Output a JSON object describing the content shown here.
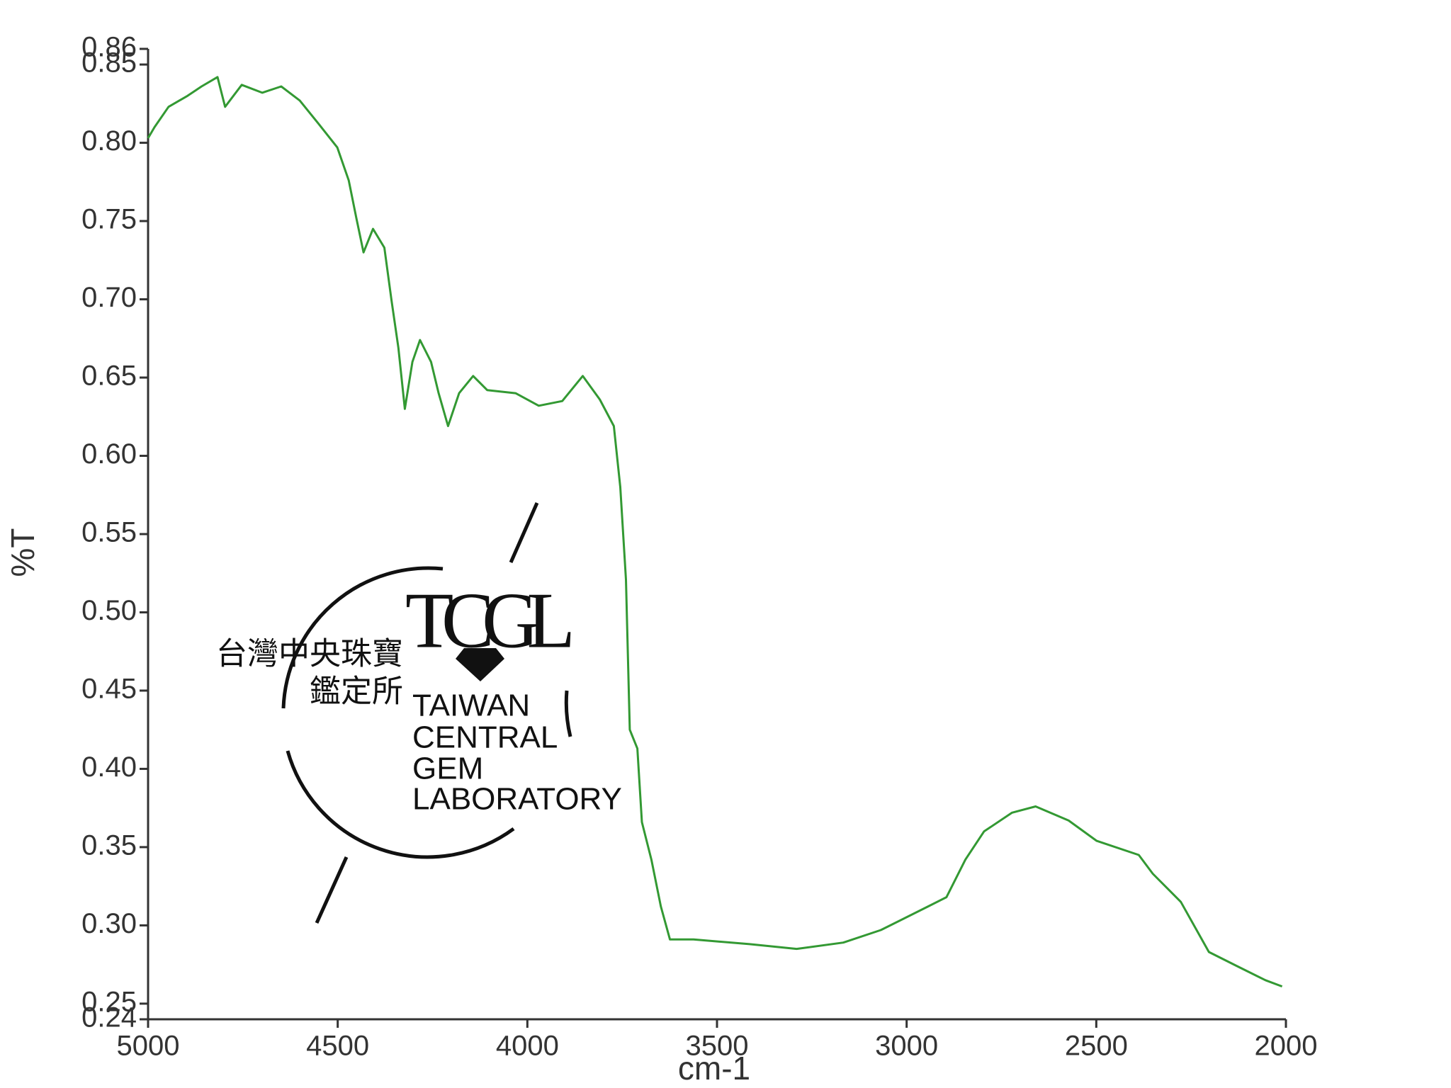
{
  "chart_data": {
    "type": "line",
    "x_label": "cm-1",
    "y_label": "%T",
    "x": [
      5000,
      4983,
      4946,
      4896,
      4859,
      4817,
      4797,
      4753,
      4699,
      4649,
      4600,
      4550,
      4501,
      4471,
      4451,
      4432,
      4407,
      4377,
      4358,
      4340,
      4323,
      4303,
      4283,
      4254,
      4234,
      4209,
      4180,
      4143,
      4106,
      4031,
      3970,
      3908,
      3854,
      3809,
      3772,
      3755,
      3740,
      3730,
      3710,
      3698,
      3673,
      3648,
      3624,
      3562,
      3414,
      3290,
      3167,
      3068,
      2944,
      2895,
      2845,
      2796,
      2722,
      2660,
      2573,
      2499,
      2388,
      2351,
      2277,
      2203,
      2129,
      2054,
      2010
    ],
    "series": [
      {
        "color": "#339933",
        "values": [
          0.803,
          0.81,
          0.823,
          0.83,
          0.836,
          0.842,
          0.823,
          0.837,
          0.832,
          0.836,
          0.827,
          0.812,
          0.797,
          0.776,
          0.752,
          0.73,
          0.745,
          0.733,
          0.699,
          0.669,
          0.63,
          0.66,
          0.674,
          0.66,
          0.64,
          0.619,
          0.64,
          0.651,
          0.642,
          0.64,
          0.632,
          0.635,
          0.651,
          0.636,
          0.619,
          0.58,
          0.521,
          0.425,
          0.413,
          0.366,
          0.342,
          0.312,
          0.291,
          0.291,
          0.288,
          0.285,
          0.289,
          0.297,
          0.312,
          0.318,
          0.342,
          0.36,
          0.372,
          0.376,
          0.367,
          0.354,
          0.345,
          0.333,
          0.315,
          0.283,
          0.274,
          0.265,
          0.261
        ]
      }
    ],
    "xlim": [
      5000,
      2000
    ],
    "xticks": [
      5000,
      4500,
      4000,
      3500,
      3000,
      2500,
      2000
    ],
    "ylim": [
      0.24,
      0.86
    ],
    "yticks": [
      0.24,
      0.25,
      {
        "value": 0.3,
        "label": "0.30"
      },
      0.35,
      {
        "value": 0.4,
        "label": "0.40"
      },
      0.45,
      {
        "value": 0.5,
        "label": "0.50"
      },
      0.55,
      {
        "value": 0.6,
        "label": "0.60"
      },
      0.65,
      {
        "value": 0.7,
        "label": "0.70"
      },
      0.75,
      {
        "value": 0.8,
        "label": "0.80"
      },
      0.85,
      0.86
    ],
    "watermark": {
      "chinese": [
        "台灣中央珠寶",
        "鑑定所"
      ],
      "logo": "TCGL",
      "lines": [
        "TAIWAN",
        "CENTRAL",
        "GEM",
        "LABORATORY"
      ]
    }
  }
}
